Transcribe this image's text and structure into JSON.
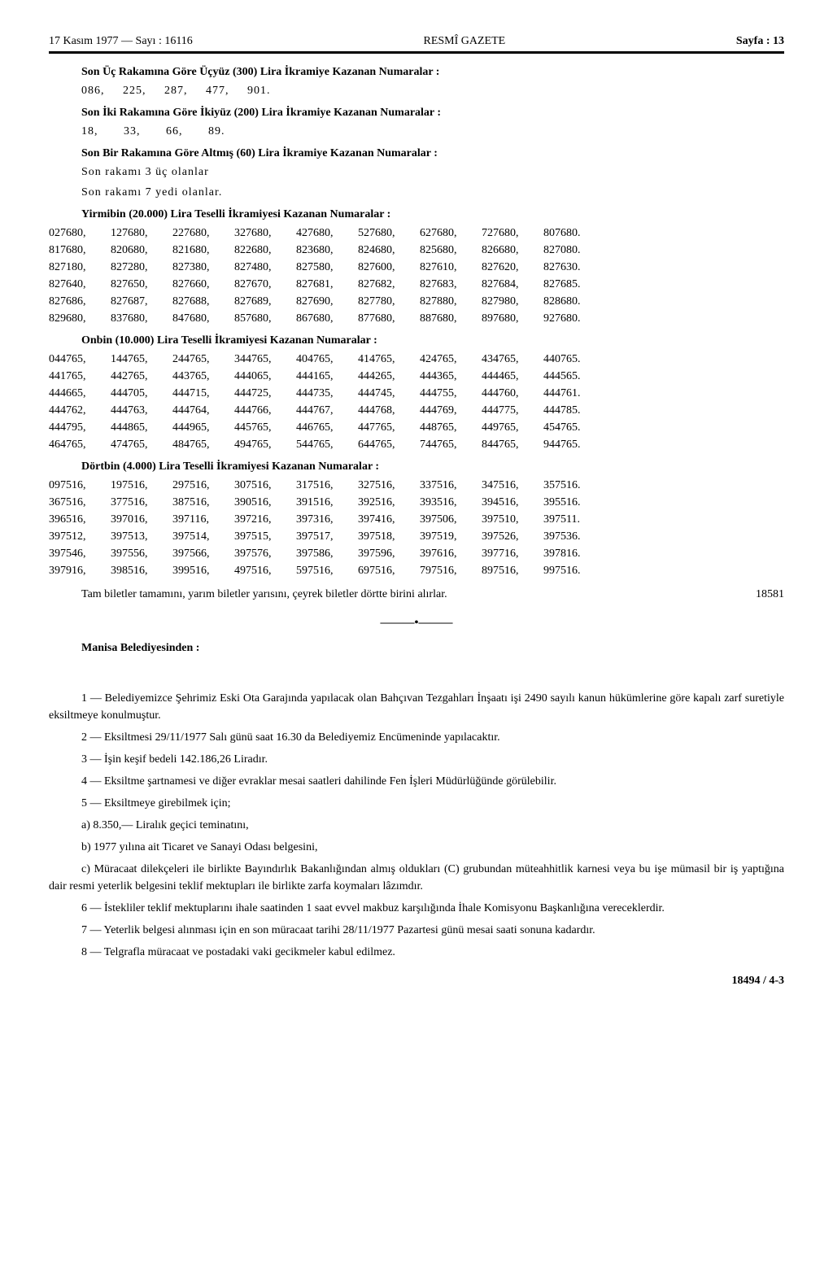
{
  "header": {
    "left": "17 Kasım 1977 — Sayı : 16116",
    "center": "RESMÎ GAZETE",
    "right": "Sayfa : 13"
  },
  "lottery": {
    "s300": {
      "title": "Son Üç Rakamına Göre Üçyüz (300) Lira İkramiye Kazanan Numaralar :",
      "numbers": "086,     225,     287,     477,     901."
    },
    "s200": {
      "title": "Son İki Rakamına Göre İkiyüz (200) Lira İkramiye Kazanan Numaralar :",
      "numbers": "18,       33,       66,       89."
    },
    "s60": {
      "title": "Son Bir Rakamına Göre Altmış (60) Lira İkramiye Kazanan Numaralar :",
      "line1": "Son rakamı 3 üç olanlar",
      "line2": "Son rakamı 7 yedi olanlar."
    },
    "s20000": {
      "title": "Yirmibin (20.000) Lira Teselli İkramiyesi Kazanan Numaralar :",
      "rows": [
        [
          "027680,",
          "127680,",
          "227680,",
          "327680,",
          "427680,",
          "527680,",
          "627680,",
          "727680,",
          "807680."
        ],
        [
          "817680,",
          "820680,",
          "821680,",
          "822680,",
          "823680,",
          "824680,",
          "825680,",
          "826680,",
          "827080."
        ],
        [
          "827180,",
          "827280,",
          "827380,",
          "827480,",
          "827580,",
          "827600,",
          "827610,",
          "827620,",
          "827630."
        ],
        [
          "827640,",
          "827650,",
          "827660,",
          "827670,",
          "827681,",
          "827682,",
          "827683,",
          "827684,",
          "827685."
        ],
        [
          "827686,",
          "827687,",
          "827688,",
          "827689,",
          "827690,",
          "827780,",
          "827880,",
          "827980,",
          "828680."
        ],
        [
          "829680,",
          "837680,",
          "847680,",
          "857680,",
          "867680,",
          "877680,",
          "887680,",
          "897680,",
          "927680."
        ]
      ]
    },
    "s10000": {
      "title": "Onbin (10.000) Lira Teselli İkramiyesi Kazanan Numaralar :",
      "rows": [
        [
          "044765,",
          "144765,",
          "244765,",
          "344765,",
          "404765,",
          "414765,",
          "424765,",
          "434765,",
          "440765."
        ],
        [
          "441765,",
          "442765,",
          "443765,",
          "444065,",
          "444165,",
          "444265,",
          "444365,",
          "444465,",
          "444565."
        ],
        [
          "444665,",
          "444705,",
          "444715,",
          "444725,",
          "444735,",
          "444745,",
          "444755,",
          "444760,",
          "444761."
        ],
        [
          "444762,",
          "444763,",
          "444764,",
          "444766,",
          "444767,",
          "444768,",
          "444769,",
          "444775,",
          "444785."
        ],
        [
          "444795,",
          "444865,",
          "444965,",
          "445765,",
          "446765,",
          "447765,",
          "448765,",
          "449765,",
          "454765."
        ],
        [
          "464765,",
          "474765,",
          "484765,",
          "494765,",
          "544765,",
          "644765,",
          "744765,",
          "844765,",
          "944765."
        ]
      ]
    },
    "s4000": {
      "title": "Dörtbin (4.000) Lira Teselli İkramiyesi Kazanan Numaralar :",
      "rows": [
        [
          "097516,",
          "197516,",
          "297516,",
          "307516,",
          "317516,",
          "327516,",
          "337516,",
          "347516,",
          "357516."
        ],
        [
          "367516,",
          "377516,",
          "387516,",
          "390516,",
          "391516,",
          "392516,",
          "393516,",
          "394516,",
          "395516."
        ],
        [
          "396516,",
          "397016,",
          "397116,",
          "397216,",
          "397316,",
          "397416,",
          "397506,",
          "397510,",
          "397511."
        ],
        [
          "397512,",
          "397513,",
          "397514,",
          "397515,",
          "397517,",
          "397518,",
          "397519,",
          "397526,",
          "397536."
        ],
        [
          "397546,",
          "397556,",
          "397566,",
          "397576,",
          "397586,",
          "397596,",
          "397616,",
          "397716,",
          "397816."
        ],
        [
          "397916,",
          "398516,",
          "399516,",
          "497516,",
          "597516,",
          "697516,",
          "797516,",
          "897516,",
          "997516."
        ]
      ]
    },
    "closing": "Tam biletler tamamını, yarım biletler yarısını, çeyrek biletler dörtte birini alırlar.",
    "ref": "18581"
  },
  "notice": {
    "signer": "Manisa Belediyesinden :",
    "paras": [
      "1 — Belediyemizce Şehrimiz Eski Ota Garajında yapılacak olan Bahçıvan Tezgahları İnşaatı işi 2490 sayılı kanun hükümlerine göre kapalı zarf suretiyle eksiltmeye konulmuştur.",
      "2 — Eksiltmesi 29/11/1977 Salı günü saat 16.30 da Belediyemiz Encümeninde yapılacaktır.",
      "3 — İşin keşif bedeli 142.186,26 Liradır.",
      "4 — Eksiltme şartnamesi ve diğer evraklar mesai saatleri dahilinde Fen İşleri Müdürlüğünde görülebilir.",
      "5 — Eksiltmeye girebilmek için;",
      "a)  8.350,— Liralık geçici teminatını,",
      "b)  1977 yılına ait Ticaret ve Sanayi Odası belgesini,",
      "c)  Müracaat dilekçeleri ile birlikte Bayındırlık Bakanlığından almış oldukları (C) grubundan müteahhitlik karnesi veya bu işe mümasil bir iş yaptığına dair resmi yeterlik belgesini teklif mektupları ile birlikte zarfa koymaları lâzımdır.",
      "6 — İstekliler teklif mektuplarını ihale saatinden 1 saat evvel makbuz karşılığında İhale Komisyonu Başkanlığına vereceklerdir.",
      "7 — Yeterlik belgesi alınması için en son müracaat tarihi 28/11/1977 Pazartesi günü mesai saati sonuna kadardır.",
      "8 — Telgrafla müracaat ve postadaki vaki gecikmeler kabul edilmez."
    ],
    "ref": "18494 / 4-3"
  }
}
